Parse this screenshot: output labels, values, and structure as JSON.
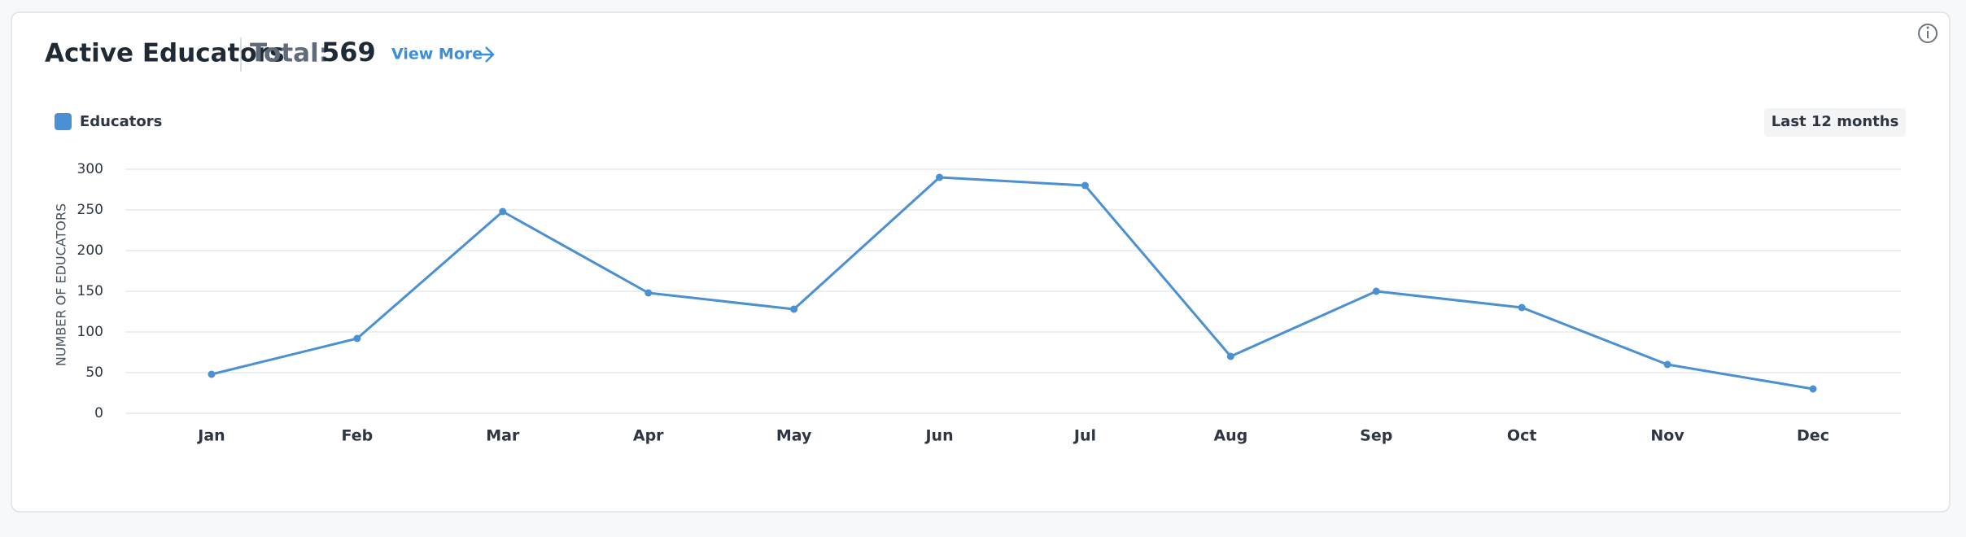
{
  "chart_data": {
    "type": "line",
    "title": "Active Educators",
    "total_label": "Total:",
    "total": 569,
    "link": "View More",
    "range_button": "Last 12 months",
    "ylabel": "NUMBER OF EDUCATORS",
    "categories": [
      "Jan",
      "Feb",
      "Mar",
      "Apr",
      "May",
      "Jun",
      "Jul",
      "Aug",
      "Sep",
      "Oct",
      "Nov",
      "Dec"
    ],
    "series": [
      {
        "name": "Educators",
        "color": "#4a90d2",
        "values": [
          48,
          92,
          248,
          148,
          128,
          290,
          280,
          70,
          150,
          130,
          60,
          30
        ]
      }
    ],
    "ylim": [
      0,
      300
    ],
    "yticks": [
      0,
      50,
      100,
      150,
      200,
      250,
      300
    ],
    "grid": true,
    "legend": "top-left"
  }
}
